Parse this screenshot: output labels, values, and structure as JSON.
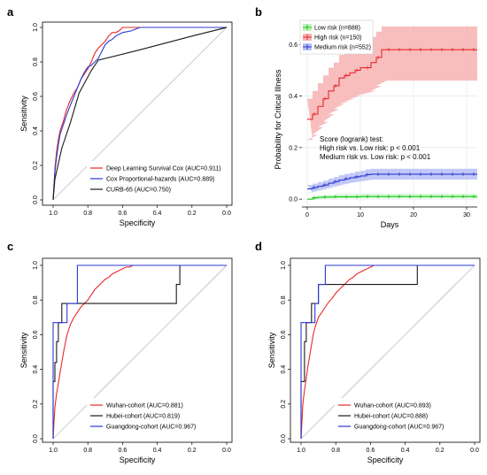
{
  "panels": {
    "a": "a",
    "b": "b",
    "c": "c",
    "d": "d"
  },
  "chart_data": [
    {
      "id": "a",
      "type": "line",
      "title": "",
      "xlabel": "Specificity",
      "ylabel": "Sensitivity",
      "xlim": [
        1.0,
        0.0
      ],
      "ylim": [
        0.0,
        1.0
      ],
      "x_ticks": [
        "1.0",
        "0.8",
        "0.6",
        "0.4",
        "0.2",
        "0.0"
      ],
      "y_ticks": [
        "0.0",
        "0.2",
        "0.4",
        "0.6",
        "0.8",
        "1.0"
      ],
      "diagonal": true,
      "legend_position": "bottom-right",
      "series": [
        {
          "name": "Deep Learning Survival Cox (AUC=0.911)",
          "color": "#e8282b",
          "x": [
            1.0,
            0.99,
            0.98,
            0.97,
            0.96,
            0.95,
            0.94,
            0.93,
            0.92,
            0.9,
            0.88,
            0.86,
            0.84,
            0.82,
            0.8,
            0.78,
            0.76,
            0.74,
            0.72,
            0.7,
            0.68,
            0.66,
            0.64,
            0.62,
            0.6,
            0.55,
            0.5,
            0.0
          ],
          "y": [
            0.0,
            0.18,
            0.28,
            0.35,
            0.4,
            0.43,
            0.46,
            0.5,
            0.53,
            0.58,
            0.62,
            0.65,
            0.7,
            0.73,
            0.76,
            0.8,
            0.85,
            0.88,
            0.9,
            0.92,
            0.95,
            0.97,
            0.97,
            0.98,
            1.0,
            1.0,
            1.0,
            1.0
          ]
        },
        {
          "name": "Cox Proportional-hazards (AUC=0.889)",
          "color": "#2b39d1",
          "x": [
            1.0,
            0.99,
            0.98,
            0.97,
            0.96,
            0.94,
            0.92,
            0.9,
            0.88,
            0.86,
            0.84,
            0.82,
            0.8,
            0.78,
            0.76,
            0.74,
            0.72,
            0.7,
            0.68,
            0.66,
            0.64,
            0.6,
            0.55,
            0.5,
            0.0
          ],
          "y": [
            0.0,
            0.16,
            0.25,
            0.32,
            0.38,
            0.44,
            0.5,
            0.55,
            0.6,
            0.65,
            0.7,
            0.74,
            0.77,
            0.78,
            0.8,
            0.82,
            0.86,
            0.9,
            0.92,
            0.93,
            0.95,
            0.97,
            0.98,
            1.0,
            1.0
          ]
        },
        {
          "name": "CURB-65 (AUC=0.750)",
          "color": "#1a1a1a",
          "x": [
            1.0,
            0.99,
            0.95,
            0.9,
            0.85,
            0.78,
            0.74,
            0.5,
            0.2,
            0.0
          ],
          "y": [
            0.0,
            0.12,
            0.3,
            0.45,
            0.62,
            0.75,
            0.81,
            0.87,
            0.95,
            1.0
          ]
        }
      ]
    },
    {
      "id": "b",
      "type": "line",
      "title": "",
      "xlabel": "Days",
      "ylabel": "Probability for Critical Illness",
      "xlim": [
        -1,
        32
      ],
      "ylim": [
        -0.02,
        0.68
      ],
      "x_ticks": [
        0,
        10,
        20,
        30
      ],
      "y_ticks": [
        "0.0",
        "0.2",
        "0.4",
        "0.6"
      ],
      "grid": true,
      "legend_position": "top-left",
      "annotation": [
        "Score (logrank) test:",
        "High risk vs. Low risk: p < 0.001",
        "Medium risk vs. Low risk: p < 0.001"
      ],
      "series": [
        {
          "name": "Low risk (n=888)",
          "color": "#15c615",
          "band_color": "#bff3bf",
          "x": [
            0,
            1,
            2,
            3,
            4,
            5,
            6,
            7,
            8,
            9,
            10,
            11,
            12,
            13,
            14,
            15,
            16,
            17,
            18,
            19,
            20,
            21,
            22,
            23,
            24,
            25,
            26,
            27,
            28,
            29,
            30,
            31,
            32
          ],
          "y": [
            0.0,
            0.005,
            0.007,
            0.008,
            0.008,
            0.009,
            0.009,
            0.009,
            0.009,
            0.009,
            0.01,
            0.01,
            0.01,
            0.01,
            0.01,
            0.01,
            0.01,
            0.01,
            0.01,
            0.01,
            0.01,
            0.01,
            0.01,
            0.01,
            0.01,
            0.01,
            0.01,
            0.01,
            0.01,
            0.01,
            0.01,
            0.01,
            0.01
          ],
          "lower": [
            0.0,
            0.001,
            0.002,
            0.003,
            0.003,
            0.004,
            0.004,
            0.004,
            0.004,
            0.004,
            0.004,
            0.004,
            0.004,
            0.004,
            0.004,
            0.004,
            0.004,
            0.004,
            0.004,
            0.004,
            0.004,
            0.004,
            0.004,
            0.004,
            0.004,
            0.004,
            0.004,
            0.004,
            0.004,
            0.004,
            0.004,
            0.004,
            0.004
          ],
          "upper": [
            0.0,
            0.012,
            0.014,
            0.016,
            0.017,
            0.018,
            0.018,
            0.018,
            0.018,
            0.019,
            0.02,
            0.02,
            0.02,
            0.02,
            0.02,
            0.02,
            0.02,
            0.02,
            0.02,
            0.02,
            0.02,
            0.02,
            0.02,
            0.02,
            0.02,
            0.02,
            0.02,
            0.02,
            0.02,
            0.02,
            0.02,
            0.02,
            0.02
          ]
        },
        {
          "name": "High risk (n=150)",
          "color": "#e8282b",
          "band_color": "#f7b3b3",
          "x": [
            0,
            1,
            2,
            3,
            4,
            5,
            6,
            7,
            8,
            9,
            10,
            11,
            12,
            13,
            14,
            15,
            16,
            17,
            18,
            19,
            20,
            21,
            22,
            23,
            24,
            25,
            26,
            27,
            28,
            29,
            30,
            31,
            32
          ],
          "y": [
            0.31,
            0.33,
            0.36,
            0.39,
            0.42,
            0.44,
            0.47,
            0.48,
            0.49,
            0.5,
            0.51,
            0.51,
            0.53,
            0.55,
            0.58,
            0.58,
            0.58,
            0.58,
            0.58,
            0.58,
            0.58,
            0.58,
            0.58,
            0.58,
            0.58,
            0.58,
            0.58,
            0.58,
            0.58,
            0.58,
            0.58,
            0.58,
            0.58
          ],
          "lower": [
            0.23,
            0.25,
            0.28,
            0.3,
            0.33,
            0.35,
            0.37,
            0.38,
            0.39,
            0.4,
            0.41,
            0.41,
            0.42,
            0.44,
            0.46,
            0.46,
            0.46,
            0.46,
            0.46,
            0.46,
            0.46,
            0.46,
            0.46,
            0.46,
            0.46,
            0.46,
            0.46,
            0.46,
            0.46,
            0.46,
            0.46,
            0.46,
            0.46
          ],
          "upper": [
            0.39,
            0.42,
            0.45,
            0.48,
            0.51,
            0.53,
            0.56,
            0.57,
            0.58,
            0.59,
            0.6,
            0.6,
            0.63,
            0.65,
            0.67,
            0.67,
            0.67,
            0.67,
            0.67,
            0.67,
            0.67,
            0.67,
            0.67,
            0.67,
            0.67,
            0.67,
            0.67,
            0.67,
            0.67,
            0.67,
            0.67,
            0.67,
            0.67
          ]
        },
        {
          "name": "Medium risk (n=552)",
          "color": "#2b39d1",
          "band_color": "#b9c0f5",
          "x": [
            0,
            1,
            2,
            3,
            4,
            5,
            6,
            7,
            8,
            9,
            10,
            11,
            12,
            13,
            14,
            15,
            16,
            17,
            18,
            19,
            20,
            21,
            22,
            23,
            24,
            25,
            26,
            27,
            28,
            29,
            30,
            31,
            32
          ],
          "y": [
            0.04,
            0.045,
            0.05,
            0.055,
            0.062,
            0.068,
            0.074,
            0.079,
            0.083,
            0.087,
            0.09,
            0.095,
            0.097,
            0.097,
            0.097,
            0.097,
            0.097,
            0.097,
            0.097,
            0.097,
            0.097,
            0.097,
            0.097,
            0.097,
            0.097,
            0.097,
            0.097,
            0.097,
            0.097,
            0.097,
            0.097,
            0.097,
            0.097
          ],
          "lower": [
            0.025,
            0.03,
            0.034,
            0.039,
            0.045,
            0.05,
            0.055,
            0.06,
            0.064,
            0.067,
            0.07,
            0.074,
            0.076,
            0.076,
            0.076,
            0.076,
            0.076,
            0.076,
            0.076,
            0.076,
            0.076,
            0.076,
            0.076,
            0.076,
            0.076,
            0.076,
            0.076,
            0.076,
            0.076,
            0.076,
            0.076,
            0.076,
            0.076
          ],
          "upper": [
            0.055,
            0.06,
            0.066,
            0.072,
            0.08,
            0.086,
            0.093,
            0.098,
            0.102,
            0.107,
            0.11,
            0.116,
            0.118,
            0.118,
            0.118,
            0.118,
            0.118,
            0.118,
            0.118,
            0.118,
            0.118,
            0.118,
            0.118,
            0.118,
            0.118,
            0.118,
            0.118,
            0.118,
            0.118,
            0.118,
            0.118,
            0.118,
            0.118
          ]
        }
      ]
    },
    {
      "id": "c",
      "type": "line",
      "title": "",
      "xlabel": "Specificity",
      "ylabel": "Sensitivity",
      "xlim": [
        1.0,
        0.0
      ],
      "ylim": [
        0.0,
        1.0
      ],
      "x_ticks": [
        "1.0",
        "0.8",
        "0.6",
        "0.4",
        "0.2",
        "0.0"
      ],
      "y_ticks": [
        "0.0",
        "0.2",
        "0.4",
        "0.6",
        "0.8",
        "1.0"
      ],
      "diagonal": true,
      "legend_position": "bottom-right",
      "series": [
        {
          "name": "Wuhan-cohort (AUC=0.881)",
          "color": "#e8282b",
          "x": [
            1.0,
            0.995,
            0.99,
            0.98,
            0.97,
            0.96,
            0.95,
            0.94,
            0.93,
            0.92,
            0.9,
            0.88,
            0.86,
            0.84,
            0.82,
            0.8,
            0.78,
            0.76,
            0.74,
            0.72,
            0.7,
            0.68,
            0.66,
            0.64,
            0.62,
            0.6,
            0.58,
            0.56,
            0.54,
            0.5,
            0.4,
            0.3,
            0.0
          ],
          "y": [
            0.0,
            0.1,
            0.18,
            0.26,
            0.32,
            0.38,
            0.44,
            0.5,
            0.55,
            0.6,
            0.66,
            0.7,
            0.73,
            0.76,
            0.78,
            0.8,
            0.83,
            0.86,
            0.88,
            0.9,
            0.92,
            0.93,
            0.95,
            0.96,
            0.97,
            0.98,
            0.99,
            0.99,
            1.0,
            1.0,
            1.0,
            1.0,
            1.0
          ]
        },
        {
          "name": "Hubei-cohort (AUC=0.819)",
          "color": "#1a1a1a",
          "x": [
            1.0,
            1.0,
            0.99,
            0.99,
            0.98,
            0.98,
            0.97,
            0.97,
            0.95,
            0.95,
            0.92,
            0.92,
            0.29,
            0.29,
            0.27,
            0.27,
            0.0
          ],
          "y": [
            0.0,
            0.33,
            0.33,
            0.44,
            0.44,
            0.56,
            0.56,
            0.67,
            0.67,
            0.78,
            0.78,
            0.78,
            0.78,
            0.89,
            0.89,
            1.0,
            1.0
          ]
        },
        {
          "name": "Guangdong-cohort (AUC=0.967)",
          "color": "#2b39d1",
          "x": [
            1.0,
            1.0,
            0.98,
            0.98,
            0.92,
            0.92,
            0.9,
            0.9,
            0.86,
            0.86,
            0.8,
            0.8,
            0.0
          ],
          "y": [
            0.0,
            0.67,
            0.67,
            0.67,
            0.67,
            0.78,
            0.78,
            0.78,
            0.78,
            1.0,
            1.0,
            1.0,
            1.0
          ]
        }
      ]
    },
    {
      "id": "d",
      "type": "line",
      "title": "",
      "xlabel": "Specificity",
      "ylabel": "Sensitivity",
      "xlim": [
        1.0,
        0.0
      ],
      "ylim": [
        0.0,
        1.0
      ],
      "x_ticks": [
        "1.0",
        "0.8",
        "0.6",
        "0.4",
        "0.2",
        "0.0"
      ],
      "y_ticks": [
        "0.0",
        "0.2",
        "0.4",
        "0.6",
        "0.8",
        "1.0"
      ],
      "diagonal": true,
      "legend_position": "bottom-right",
      "series": [
        {
          "name": "Wuhan-cohort (AUC=0.893)",
          "color": "#e8282b",
          "x": [
            1.0,
            0.995,
            0.99,
            0.98,
            0.97,
            0.96,
            0.95,
            0.94,
            0.93,
            0.92,
            0.9,
            0.88,
            0.86,
            0.84,
            0.82,
            0.8,
            0.78,
            0.76,
            0.74,
            0.72,
            0.7,
            0.68,
            0.66,
            0.64,
            0.62,
            0.6,
            0.58,
            0.56,
            0.5,
            0.4,
            0.0
          ],
          "y": [
            0.0,
            0.1,
            0.2,
            0.28,
            0.35,
            0.42,
            0.48,
            0.54,
            0.6,
            0.64,
            0.7,
            0.73,
            0.76,
            0.79,
            0.81,
            0.84,
            0.86,
            0.88,
            0.9,
            0.92,
            0.93,
            0.95,
            0.96,
            0.97,
            0.98,
            0.99,
            1.0,
            1.0,
            1.0,
            1.0,
            1.0
          ]
        },
        {
          "name": "Hubei-cohort (AUC=0.888)",
          "color": "#1a1a1a",
          "x": [
            1.0,
            1.0,
            0.98,
            0.98,
            0.97,
            0.97,
            0.94,
            0.94,
            0.9,
            0.9,
            0.33,
            0.33,
            0.0
          ],
          "y": [
            0.0,
            0.33,
            0.33,
            0.56,
            0.56,
            0.67,
            0.67,
            0.78,
            0.78,
            0.89,
            0.89,
            1.0,
            1.0
          ]
        },
        {
          "name": "Guangdong-cohort (AUC=0.967)",
          "color": "#2b39d1",
          "x": [
            1.0,
            1.0,
            0.97,
            0.97,
            0.92,
            0.92,
            0.9,
            0.9,
            0.86,
            0.86,
            0.0
          ],
          "y": [
            0.0,
            0.67,
            0.67,
            0.67,
            0.67,
            0.78,
            0.78,
            0.89,
            0.89,
            1.0,
            1.0
          ]
        }
      ]
    }
  ]
}
